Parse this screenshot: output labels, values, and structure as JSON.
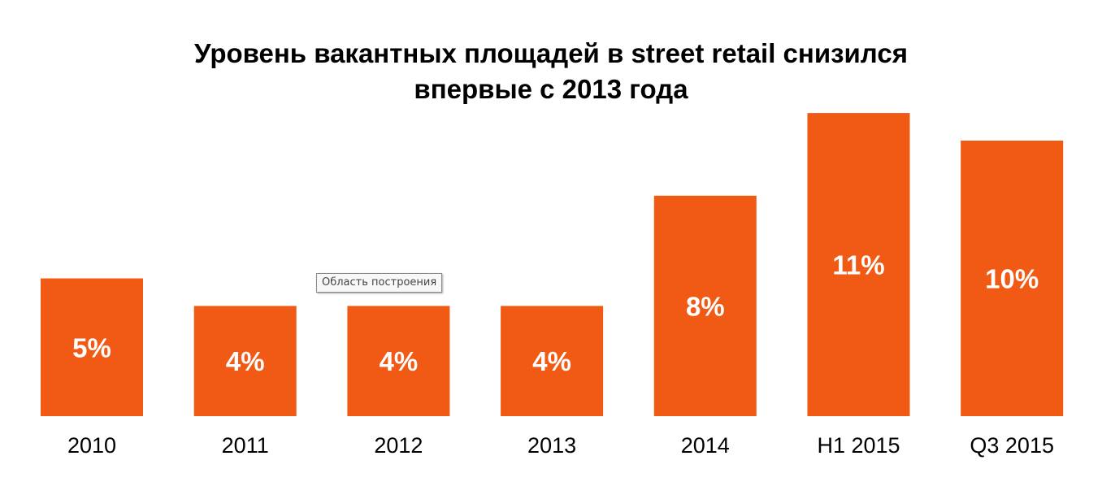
{
  "chart_data": {
    "type": "bar",
    "title": "Уровень вакантных площадей в street retail снизился впервые с 2013 года",
    "title_lines": [
      "Уровень вакантных площадей в street retail снизился",
      "впервые с 2013 года"
    ],
    "categories": [
      "2010",
      "2011",
      "2012",
      "2013",
      "2014",
      "H1 2015",
      "Q3 2015"
    ],
    "values": [
      5,
      4,
      4,
      4,
      8,
      11,
      10
    ],
    "data_labels": [
      "5%",
      "4%",
      "4%",
      "4%",
      "8%",
      "11%",
      "10%"
    ],
    "unit": "%",
    "xlabel": "",
    "ylabel": "",
    "grid": false,
    "legend": "none",
    "bar_color": "#F05A14",
    "label_color": "#FFFFFF"
  },
  "tooltip": {
    "text": "Область построения"
  }
}
